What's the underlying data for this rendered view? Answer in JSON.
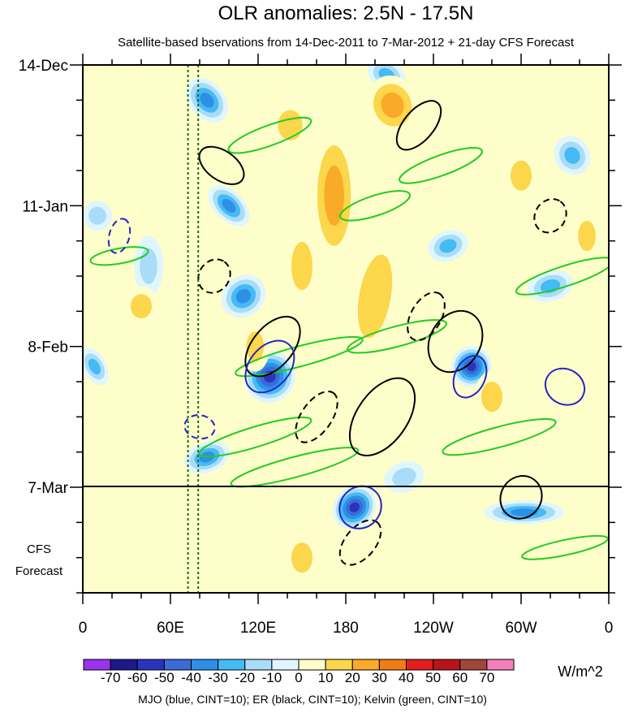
{
  "chart_data": {
    "type": "heatmap",
    "title": "OLR anomalies: 2.5N - 17.5N",
    "subtitle": "Satellite-based bservations from 14-Dec-2011 to 7-Mar-2012 + 21-day CFS Forecast",
    "x_range_deg": [
      0,
      360
    ],
    "x_ticks": [
      {
        "lon": 0,
        "label": "0"
      },
      {
        "lon": 60,
        "label": "60E"
      },
      {
        "lon": 120,
        "label": "120E"
      },
      {
        "lon": 180,
        "label": "180"
      },
      {
        "lon": 240,
        "label": "120W"
      },
      {
        "lon": 300,
        "label": "60W"
      },
      {
        "lon": 360,
        "label": "0"
      }
    ],
    "y_range_days": [
      0,
      105
    ],
    "y_ticks": [
      {
        "day": 0,
        "label": "14-Dec"
      },
      {
        "day": 28,
        "label": "11-Jan"
      },
      {
        "day": 56,
        "label": "8-Feb"
      },
      {
        "day": 84,
        "label": "7-Mar"
      }
    ],
    "observation_end_day": 84,
    "forecast_label_line1": "CFS",
    "forecast_label_line2": "Forecast",
    "reference_longitudes": [
      72,
      79
    ],
    "colorbar": {
      "unit": "W/m^2",
      "levels": [
        -70,
        -60,
        -50,
        -40,
        -30,
        -20,
        -10,
        0,
        10,
        20,
        30,
        40,
        50,
        60,
        70
      ],
      "labels": [
        "-70",
        "-60",
        "-50",
        "-40",
        "-30",
        "-20",
        "-10",
        "0",
        "10",
        "20",
        "30",
        "40",
        "50",
        "60",
        "70"
      ],
      "colors": [
        "#9933ee",
        "#1e1a8c",
        "#2b33bb",
        "#3a6bd8",
        "#2e8fe6",
        "#45baf5",
        "#a9dcf7",
        "#dff6fd",
        "#fefeca",
        "#fcd64b",
        "#f9aa28",
        "#f27c13",
        "#e41e1e",
        "#b8141c",
        "#a0473a",
        "#f47fbd"
      ]
    },
    "footer": "MJO (blue, CINT=10); ER (black, CINT=10); Kelvin (green, CINT=10)",
    "contour_series": [
      {
        "name": "MJO",
        "color": "#2525c8",
        "cint": 10
      },
      {
        "name": "ER",
        "color": "#000000",
        "cint": 10
      },
      {
        "name": "Kelvin",
        "color": "#22cc22",
        "cint": 10
      }
    ],
    "anomaly_features": [
      {
        "lon": 128,
        "day": 62,
        "value": -65,
        "rx": 18,
        "ry": 5,
        "ang": -50
      },
      {
        "lon": 186,
        "day": 88,
        "value": -65,
        "rx": 16,
        "ry": 4,
        "ang": -45
      },
      {
        "lon": 266,
        "day": 60,
        "value": -60,
        "rx": 14,
        "ry": 4,
        "ang": -60
      },
      {
        "lon": 302,
        "day": 89,
        "value": -45,
        "rx": 8,
        "ry": 8,
        "ang": 90
      },
      {
        "lon": 85,
        "day": 7,
        "value": -40,
        "rx": 12,
        "ry": 5,
        "ang": -40
      },
      {
        "lon": 100,
        "day": 28,
        "value": -40,
        "rx": 10,
        "ry": 5,
        "ang": -45
      },
      {
        "lon": 110,
        "day": 46,
        "value": -40,
        "rx": 16,
        "ry": 4,
        "ang": -40
      },
      {
        "lon": 85,
        "day": 78,
        "value": -40,
        "rx": 16,
        "ry": 3,
        "ang": -20
      },
      {
        "lon": 208,
        "day": 2,
        "value": -35,
        "rx": 10,
        "ry": 4,
        "ang": -60
      },
      {
        "lon": 250,
        "day": 36,
        "value": -35,
        "rx": 14,
        "ry": 3,
        "ang": -20
      },
      {
        "lon": 320,
        "day": 44,
        "value": -30,
        "rx": 16,
        "ry": 3,
        "ang": -15
      },
      {
        "lon": 335,
        "day": 18,
        "value": -30,
        "rx": 12,
        "ry": 4,
        "ang": -30
      },
      {
        "lon": 8,
        "day": 60,
        "value": -30,
        "rx": 8,
        "ry": 4,
        "ang": -30
      },
      {
        "lon": 10,
        "day": 30,
        "value": -25,
        "rx": 10,
        "ry": 3,
        "ang": -15
      },
      {
        "lon": 45,
        "day": 40,
        "value": -20,
        "rx": 10,
        "ry": 6,
        "ang": 0
      },
      {
        "lon": 220,
        "day": 82,
        "value": -25,
        "rx": 14,
        "ry": 3,
        "ang": -20
      },
      {
        "lon": 172,
        "day": 26,
        "value": 30,
        "rx": 16,
        "ry": 14,
        "ang": 0
      },
      {
        "lon": 200,
        "day": 46,
        "value": 25,
        "rx": 18,
        "ry": 14,
        "ang": 10
      },
      {
        "lon": 150,
        "day": 40,
        "value": 25,
        "rx": 12,
        "ry": 8,
        "ang": 0
      },
      {
        "lon": 212,
        "day": 8,
        "value": 30,
        "rx": 18,
        "ry": 6,
        "ang": -20
      },
      {
        "lon": 142,
        "day": 12,
        "value": 25,
        "rx": 14,
        "ry": 5,
        "ang": 0
      },
      {
        "lon": 118,
        "day": 56,
        "value": 20,
        "rx": 10,
        "ry": 5,
        "ang": 0
      },
      {
        "lon": 150,
        "day": 98,
        "value": 25,
        "rx": 12,
        "ry": 5,
        "ang": 0
      },
      {
        "lon": 280,
        "day": 66,
        "value": 20,
        "rx": 12,
        "ry": 5,
        "ang": 0
      },
      {
        "lon": 40,
        "day": 48,
        "value": 20,
        "rx": 12,
        "ry": 4,
        "ang": 0
      },
      {
        "lon": 300,
        "day": 22,
        "value": 20,
        "rx": 12,
        "ry": 5,
        "ang": 0
      },
      {
        "lon": 345,
        "day": 34,
        "value": 20,
        "rx": 10,
        "ry": 5,
        "ang": 0
      },
      {
        "lon": 40,
        "day": 8,
        "value": 15,
        "rx": 14,
        "ry": 5,
        "ang": 0
      },
      {
        "lon": 228,
        "day": 98,
        "value": 15,
        "rx": 12,
        "ry": 5,
        "ang": 0
      },
      {
        "lon": 30,
        "day": 90,
        "value": 15,
        "rx": 10,
        "ry": 4,
        "ang": 0
      },
      {
        "lon": 345,
        "day": 80,
        "value": 15,
        "rx": 12,
        "ry": 4,
        "ang": 0
      }
    ]
  }
}
